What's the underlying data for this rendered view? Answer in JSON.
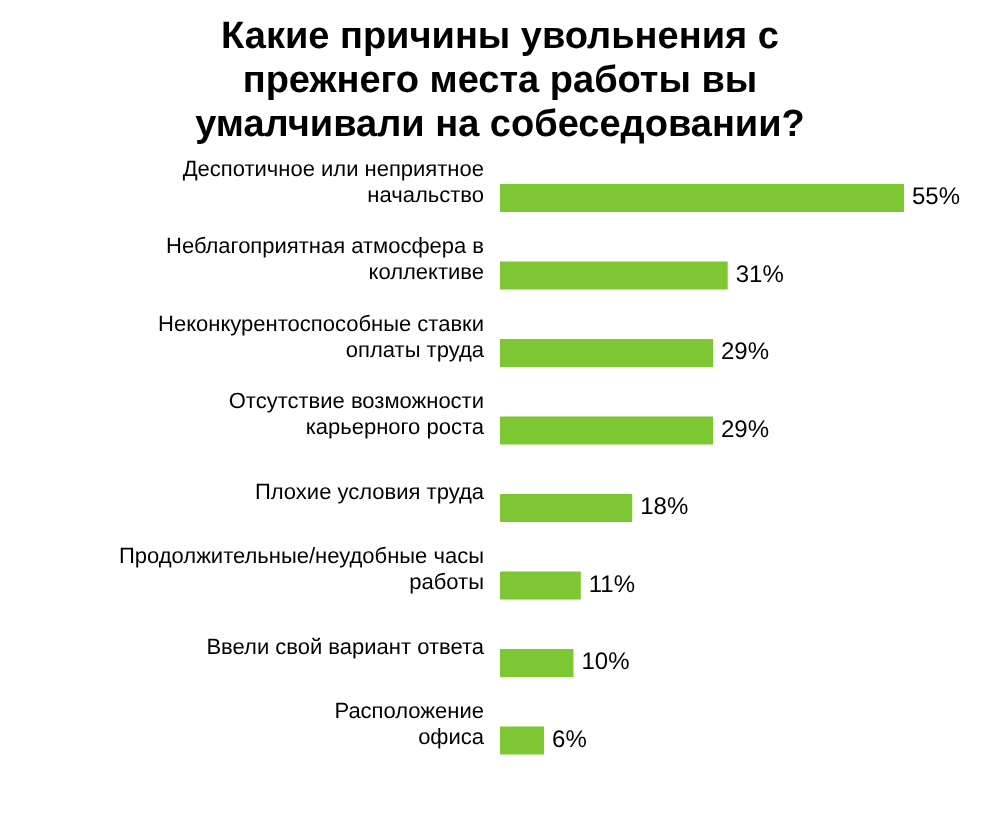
{
  "chart_data": {
    "type": "bar",
    "orientation": "horizontal",
    "title": "Какие причины увольнения с прежнего места работы вы умалчивали на собеседовании?",
    "categories": [
      "Деспотичное или неприятное\nначальство",
      "Неблагоприятная атмосфера в\nколлективе",
      "Неконкурентоспособные ставки\nоплаты труда",
      "Отсутствие возможности\nкарьерного роста",
      "Плохие условия труда",
      "Продолжительные/неудобные часы\nработы",
      "Ввели свой вариант ответа",
      "Расположение\nофиса"
    ],
    "values": [
      55,
      31,
      29,
      29,
      18,
      11,
      10,
      6
    ],
    "value_labels": [
      "55%",
      "31%",
      "29%",
      "29%",
      "18%",
      "11%",
      "10%",
      "6%"
    ],
    "color": "#7dc832",
    "grid": false,
    "legend": false
  }
}
